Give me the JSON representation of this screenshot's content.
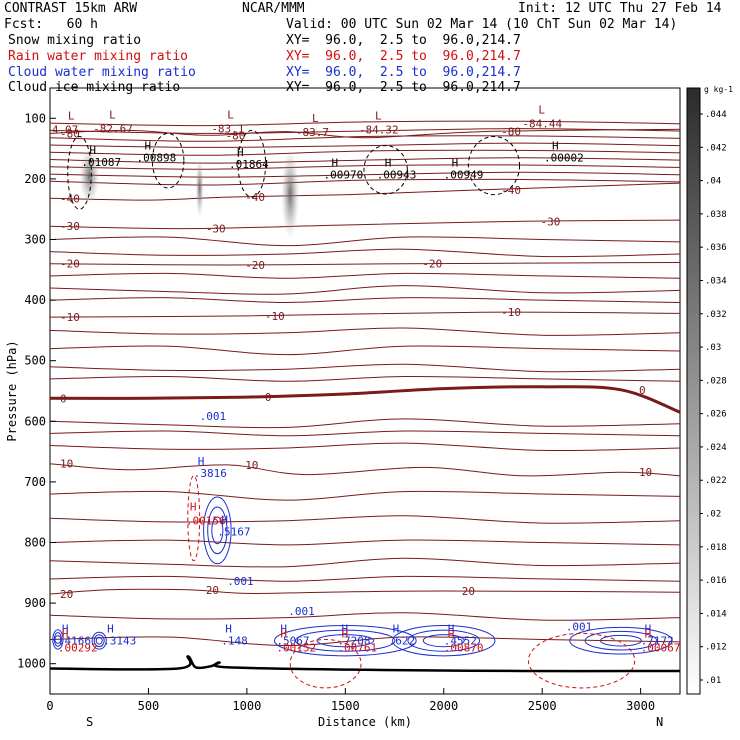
{
  "header": {
    "model": "CONTRAST 15km ARW",
    "org": "NCAR/MMM",
    "init": "Init: 12 UTC Thu 27 Feb 14",
    "fcst": "Fcst:   60 h",
    "valid": "Valid: 00 UTC Sun 02 Mar 14 (10 ChT Sun 02 Mar 14)",
    "fields": [
      {
        "name": "Snow mixing ratio",
        "xy": "XY=  96.0,  2.5 to  96.0,214.7",
        "color": "#000000"
      },
      {
        "name": "Rain water mixing ratio",
        "xy": "XY=  96.0,  2.5 to  96.0,214.7",
        "color": "#d01010"
      },
      {
        "name": "Cloud water mixing ratio",
        "xy": "XY=  96.0,  2.5 to  96.0,214.7",
        "color": "#1a2fd0"
      },
      {
        "name": "Cloud ice mixing ratio",
        "xy": "XY=  96.0,  2.5 to  96.0,214.7",
        "color": "#000000"
      }
    ]
  },
  "chart_data": {
    "type": "contour cross-section",
    "xlabel": "Distance (km)",
    "ylabel": "Pressure (hPa)",
    "xlim": [
      0,
      3200
    ],
    "ylim": [
      1050,
      50
    ],
    "x_ticks": [
      0,
      500,
      1000,
      1500,
      2000,
      2500,
      3000
    ],
    "y_ticks": [
      100,
      200,
      300,
      400,
      500,
      600,
      700,
      800,
      900,
      1000
    ],
    "endpoints": {
      "left": "S",
      "right": "N"
    },
    "temperature_contours": [
      {
        "value": "-80",
        "points": [
          [
            0,
            125
          ],
          [
            400,
            120
          ],
          [
            800,
            128
          ],
          [
            1200,
            122
          ],
          [
            1600,
            132
          ],
          [
            2200,
            122
          ],
          [
            3200,
            118
          ]
        ]
      },
      {
        "value": "-40",
        "points": [
          [
            0,
            232
          ],
          [
            500,
            235
          ],
          [
            900,
            230
          ],
          [
            1500,
            226
          ],
          [
            2200,
            218
          ],
          [
            3200,
            207
          ]
        ]
      },
      {
        "value": "-30",
        "points": [
          [
            0,
            278
          ],
          [
            700,
            282
          ],
          [
            1500,
            276
          ],
          [
            2400,
            270
          ],
          [
            3200,
            268
          ]
        ]
      },
      {
        "value": "-20",
        "points": [
          [
            0,
            340
          ],
          [
            900,
            342
          ],
          [
            1800,
            340
          ],
          [
            3200,
            338
          ]
        ]
      },
      {
        "value": "-10",
        "points": [
          [
            0,
            428
          ],
          [
            1000,
            426
          ],
          [
            2200,
            420
          ],
          [
            3200,
            422
          ]
        ]
      },
      {
        "value": "0",
        "points": [
          [
            0,
            562
          ],
          [
            500,
            562
          ],
          [
            1000,
            560
          ],
          [
            1500,
            555
          ],
          [
            2000,
            546
          ],
          [
            2500,
            543
          ],
          [
            2900,
            548
          ],
          [
            3200,
            585
          ]
        ],
        "bold": true
      },
      {
        "value": "10",
        "points": [
          [
            0,
            670
          ],
          [
            400,
            680
          ],
          [
            900,
            672
          ],
          [
            1300,
            688
          ],
          [
            1900,
            676
          ],
          [
            2400,
            690
          ],
          [
            2900,
            684
          ],
          [
            3200,
            690
          ]
        ]
      },
      {
        "value": "20",
        "points": [
          [
            0,
            885
          ],
          [
            300,
            878
          ],
          [
            700,
            878
          ],
          [
            1000,
            884
          ],
          [
            1400,
            882
          ],
          [
            2000,
            880
          ],
          [
            3200,
            882
          ]
        ]
      }
    ],
    "snow_maxima": [
      {
        "label": "H",
        "value": ".01087",
        "x": 200,
        "p": 172
      },
      {
        "label": "H",
        "value": ".00898",
        "x": 480,
        "p": 165
      },
      {
        "label": "H",
        "value": ".01864",
        "x": 950,
        "p": 175
      },
      {
        "label": "H",
        "value": ".00970",
        "x": 1430,
        "p": 193
      },
      {
        "label": "H",
        "value": ".00943",
        "x": 1700,
        "p": 193
      },
      {
        "label": "H",
        "value": ".00949",
        "x": 2040,
        "p": 193
      },
      {
        "label": "H",
        "value": ".00002",
        "x": 2550,
        "p": 165
      }
    ],
    "temperature_minima": [
      {
        "label": "L",
        "value": "4.07",
        "x": 60,
        "p": 112
      },
      {
        "label": "L",
        "value": "-82.67",
        "x": 270,
        "p": 110
      },
      {
        "label": "L",
        "value": "-83.1",
        "x": 870,
        "p": 110
      },
      {
        "label": "L",
        "value": "-83.7",
        "x": 1300,
        "p": 116
      },
      {
        "label": "L",
        "value": "-84.32",
        "x": 1620,
        "p": 112
      },
      {
        "label": "L",
        "value": "-84.44",
        "x": 2450,
        "p": 102
      }
    ],
    "cloud_water_maxima": [
      {
        "label": "H",
        "value": ".4166",
        "x": 40,
        "p": 962
      },
      {
        "label": "H",
        "value": ".3143",
        "x": 270,
        "p": 962
      },
      {
        "label": "H",
        "value": ".3816",
        "x": 730,
        "p": 685
      },
      {
        "label": "H",
        "value": ".5167",
        "x": 850,
        "p": 782
      },
      {
        "label": "H",
        "value": ".148",
        "x": 870,
        "p": 962
      },
      {
        "label": "H",
        "value": ".5067",
        "x": 1150,
        "p": 962
      },
      {
        "label": "H",
        "value": ".7208",
        "x": 1460,
        "p": 962
      },
      {
        "label": "H",
        "value": ".622",
        "x": 1720,
        "p": 962
      },
      {
        "label": "H",
        "value": ".4552",
        "x": 2000,
        "p": 962
      },
      {
        "label": "H",
        "value": ".7172",
        "x": 3000,
        "p": 962
      }
    ],
    "rain_maxima": [
      {
        "label": "H",
        "value": ".00292",
        "x": 40,
        "p": 980
      },
      {
        "label": "H",
        "value": ".00156",
        "x": 690,
        "p": 770
      },
      {
        "label": "H",
        "value": ".00152",
        "x": 1150,
        "p": 980
      },
      {
        "label": "H",
        "value": ".00761",
        "x": 1460,
        "p": 980
      },
      {
        "label": "H",
        "value": ".00870",
        "x": 2000,
        "p": 980
      },
      {
        "label": "H",
        "value": ".00067",
        "x": 3000,
        "p": 980
      }
    ],
    "cloud_water_labels": [
      ".001",
      ".001",
      ".001",
      ".001"
    ],
    "colorbar": {
      "unit": "g kg-1",
      "ticks": [
        ".01",
        ".012",
        ".014",
        ".016",
        ".018",
        ".02",
        ".022",
        ".024",
        ".026",
        ".028",
        ".03",
        ".032",
        ".034",
        ".036",
        ".038",
        ".04",
        ".042",
        ".044"
      ]
    }
  }
}
